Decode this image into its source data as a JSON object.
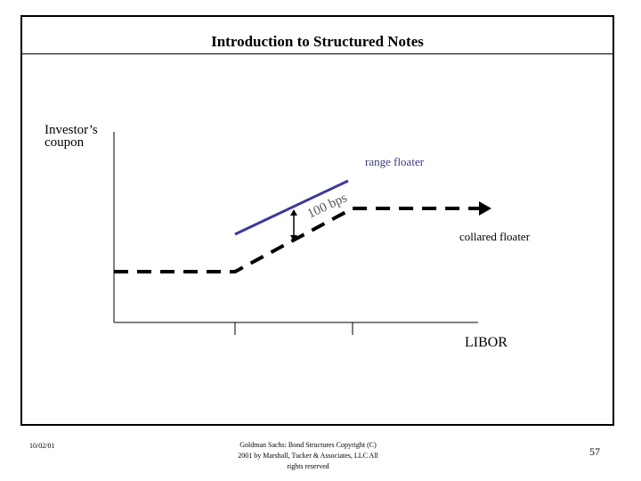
{
  "slide": {
    "title": "Introduction to Structured Notes"
  },
  "diagram": {
    "y_axis_label_line1": "Investor’s",
    "y_axis_label_line2": "coupon",
    "x_axis_label": "LIBOR",
    "range_floater_label": "range floater",
    "collared_floater_label": "collared floater",
    "spread_label": "100 bps",
    "colors": {
      "range_floater": "#3a3a9a",
      "range_floater_label": "#3a3a7a",
      "collared_floater": "#000000"
    }
  },
  "footer": {
    "date": "10/02/01",
    "copyright_line1": "Goldman Sachs: Bond Structures    Copyright (C)",
    "copyright_line2": "2001 by Marshall, Tucker & Associates, LLC   All",
    "copyright_line3": "rights reserved",
    "page_number": "57"
  }
}
